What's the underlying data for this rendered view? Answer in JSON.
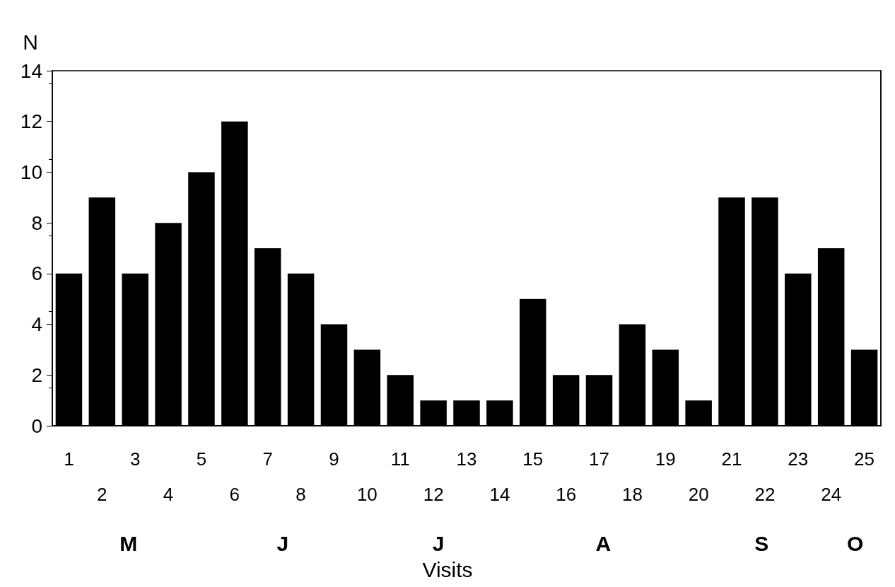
{
  "chart_data": {
    "type": "bar",
    "ylabel": "N",
    "xlabel": "Visits",
    "categories": [
      "1",
      "2",
      "3",
      "4",
      "5",
      "6",
      "7",
      "8",
      "9",
      "10",
      "11",
      "12",
      "13",
      "14",
      "15",
      "16",
      "17",
      "18",
      "19",
      "20",
      "21",
      "22",
      "23",
      "24",
      "25"
    ],
    "values": [
      6,
      9,
      6,
      8,
      10,
      12,
      7,
      6,
      4,
      3,
      2,
      1,
      1,
      1,
      5,
      2,
      2,
      4,
      3,
      1,
      9,
      9,
      6,
      7,
      3
    ],
    "color": "#000000",
    "ylim": [
      0,
      14
    ],
    "yticks": [
      0,
      2,
      4,
      6,
      8,
      10,
      12,
      14
    ],
    "grid": false,
    "annotations": [
      "M",
      "J",
      "J",
      "A",
      "S",
      "O"
    ]
  }
}
